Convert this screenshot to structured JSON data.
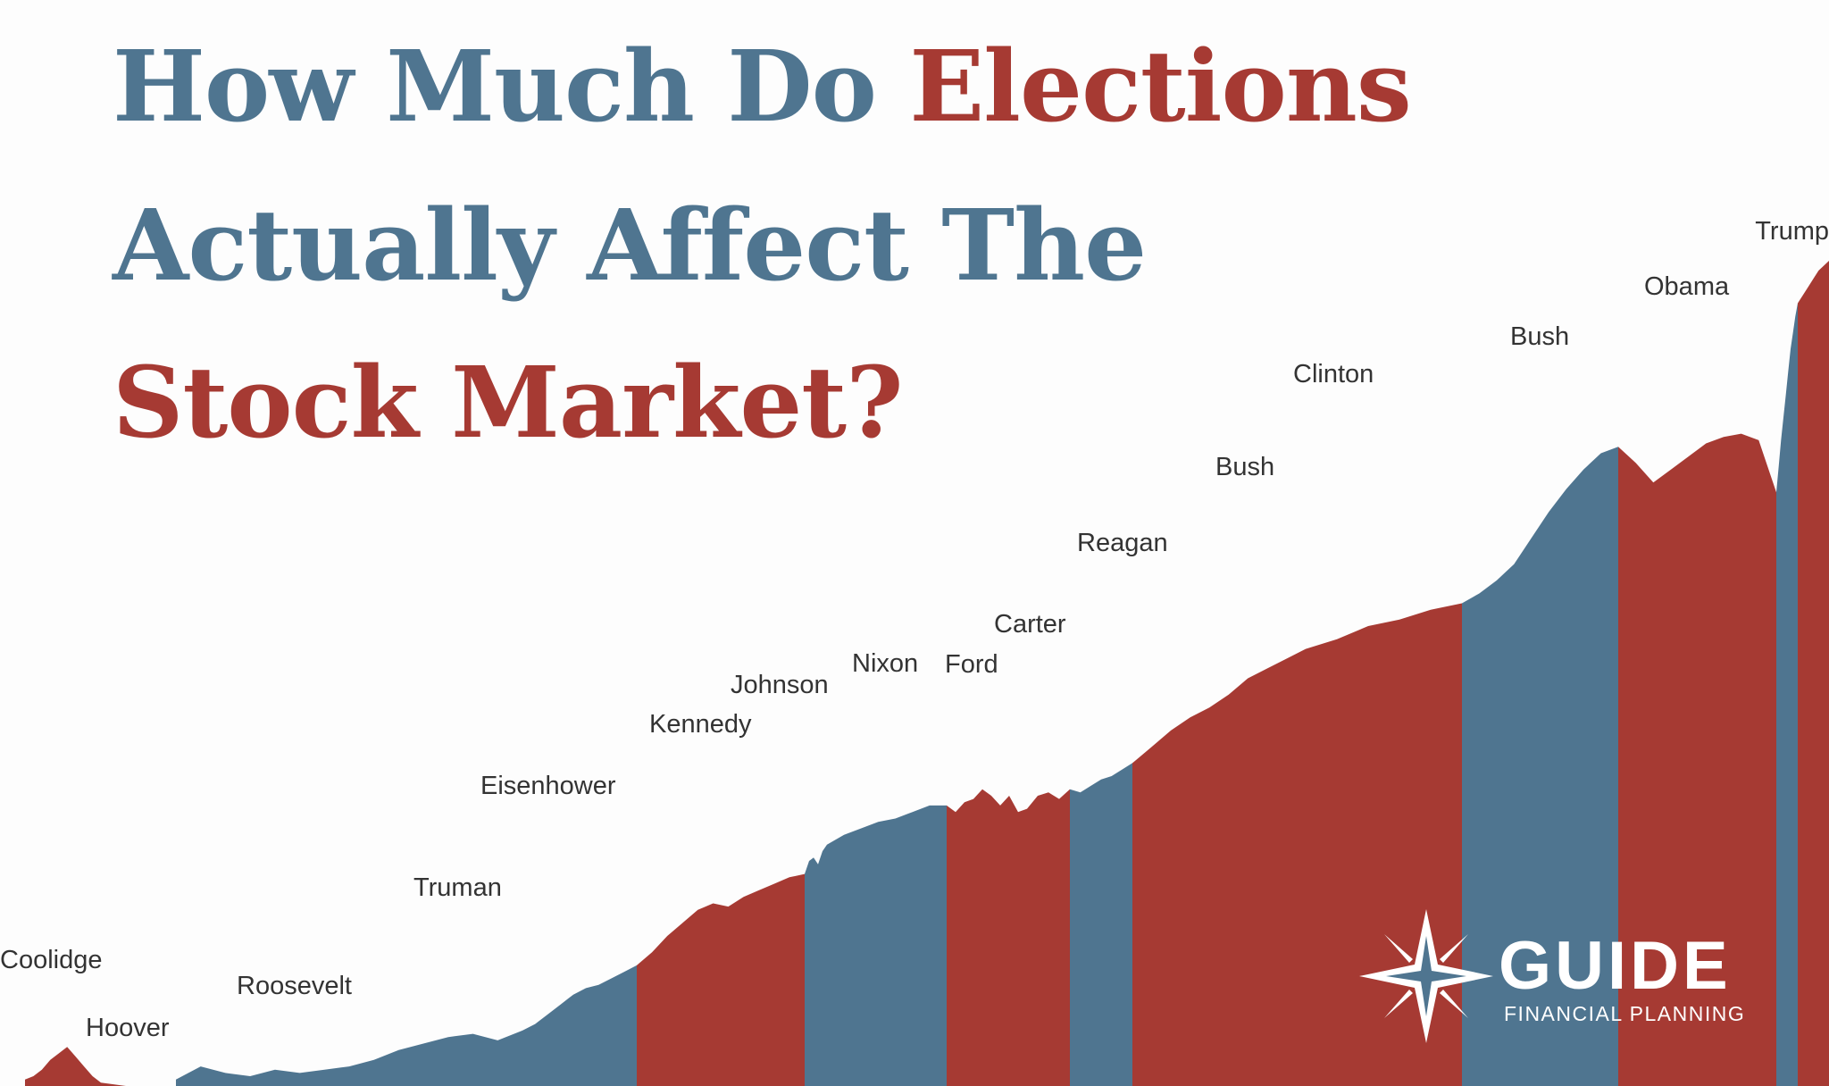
{
  "title": {
    "part1": "How Much Do ",
    "part2": "Elections",
    "part3": "Actually Affect The",
    "part4": "Stock Market?"
  },
  "colors": {
    "republican": "#a63a33",
    "democrat": "#4f7590",
    "title_blue": "#4f7590",
    "title_red": "#a63a33",
    "label": "#333333",
    "background": "#fdfdfd"
  },
  "logo": {
    "name": "GUIDE",
    "subtitle": "FINANCIAL PLANNING",
    "icon": "compass-star-icon"
  },
  "chart_data": {
    "type": "area",
    "title": "",
    "xlabel": "",
    "ylabel": "",
    "grid": false,
    "legend": "none",
    "y_scale": "log",
    "ylim": [
      0,
      100
    ],
    "note": "Stock market level shaded by presidential term; red = Republican, blue = Democrat. No axis values are printed; levels are relative estimates on a 0-100 scale.",
    "series": [
      {
        "name": "Coolidge",
        "party": "republican",
        "values": [
          2,
          3,
          5,
          8,
          10,
          12,
          9,
          6,
          3,
          1
        ]
      },
      {
        "name": "Hoover",
        "party": "republican",
        "values": [
          1,
          0,
          0,
          0
        ]
      },
      {
        "name": "Roosevelt",
        "party": "democrat",
        "values": [
          2,
          6,
          4,
          3,
          5,
          4,
          5,
          6,
          8,
          11,
          13,
          15,
          16,
          14,
          17
        ]
      },
      {
        "name": "Truman",
        "party": "democrat",
        "values": [
          17,
          19,
          22,
          25,
          28,
          30,
          31,
          33,
          35,
          37
        ]
      },
      {
        "name": "Eisenhower",
        "party": "republican",
        "values": [
          37,
          41,
          46,
          50,
          54,
          56,
          55,
          58,
          60,
          62,
          64,
          65
        ]
      },
      {
        "name": "Kennedy",
        "party": "democrat",
        "values": [
          65,
          69,
          70,
          68,
          72,
          74
        ]
      },
      {
        "name": "Johnson",
        "party": "democrat",
        "values": [
          74,
          77,
          79,
          81,
          82,
          84,
          86,
          86
        ]
      },
      {
        "name": "Nixon",
        "party": "republican",
        "values": [
          86,
          84,
          87,
          88,
          91,
          89,
          86,
          89,
          84,
          85
        ]
      },
      {
        "name": "Ford",
        "party": "republican",
        "values": [
          85,
          89,
          90,
          88,
          91
        ]
      },
      {
        "name": "Carter",
        "party": "democrat",
        "values": [
          91,
          90,
          92,
          94,
          95,
          97,
          99
        ]
      },
      {
        "name": "Reagan",
        "party": "republican",
        "values": [
          99,
          104,
          109,
          113,
          116,
          120,
          125,
          128,
          131,
          134
        ]
      },
      {
        "name": "Bush",
        "party": "republican",
        "values": [
          134,
          137,
          141,
          143,
          146,
          148
        ]
      },
      {
        "name": "Clinton",
        "party": "democrat",
        "values": [
          148,
          151,
          155,
          160,
          168,
          176,
          183,
          189,
          194,
          196
        ]
      },
      {
        "name": "Bush",
        "party": "republican",
        "values": [
          196,
          191,
          185,
          189,
          193,
          197,
          199,
          200,
          198,
          182
        ]
      },
      {
        "name": "Obama",
        "party": "democrat",
        "values": [
          182,
          190,
          198,
          205,
          212,
          219,
          226,
          231,
          236,
          240
        ]
      },
      {
        "name": "Trump",
        "party": "republican",
        "values": [
          240,
          245,
          250,
          253
        ]
      }
    ]
  }
}
